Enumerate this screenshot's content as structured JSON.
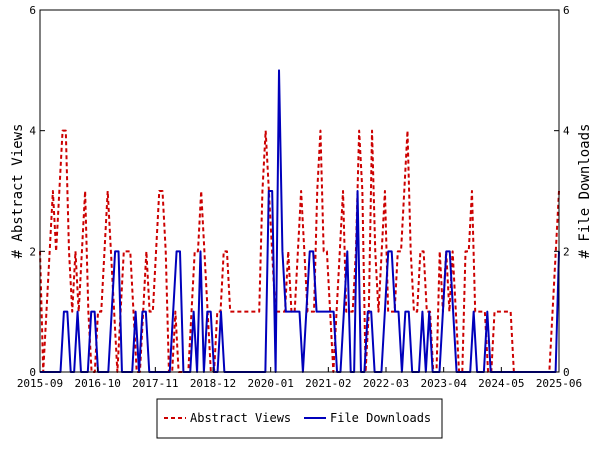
{
  "chart_data": {
    "type": "line",
    "ylabel_left": "# Abstract Views",
    "ylabel_right": "# File Downloads",
    "ylim": [
      0,
      6
    ],
    "y_ticks": [
      0,
      2,
      4,
      6
    ],
    "x_ticks": [
      "2015-09",
      "2016-10",
      "2017-11",
      "2018-12",
      "2020-01",
      "2021-02",
      "2022-03",
      "2023-04",
      "2024-05",
      "2025-06"
    ],
    "grid": false,
    "legend_placement": "bottom-center",
    "series": [
      {
        "name": "Abstract Views",
        "color": "#cc0000",
        "style": "dashed",
        "values": [
          2,
          0,
          1,
          2,
          3,
          2,
          3,
          4,
          4,
          2,
          1,
          2,
          1,
          2,
          3,
          1,
          0,
          0,
          1,
          1,
          2,
          3,
          2,
          1,
          0,
          1,
          2,
          2,
          2,
          1,
          0,
          0,
          1,
          2,
          1,
          1,
          2,
          3,
          3,
          2,
          0,
          0,
          1,
          0,
          0,
          0,
          0,
          1,
          2,
          2,
          3,
          2,
          1,
          0,
          0,
          1,
          1,
          2,
          2,
          1,
          1,
          1,
          1,
          1,
          1,
          1,
          1,
          1,
          1,
          3,
          4,
          3,
          2,
          1,
          1,
          1,
          1,
          2,
          1,
          1,
          2,
          3,
          2,
          1,
          1,
          1,
          3,
          4,
          2,
          2,
          1,
          0,
          1,
          2,
          3,
          1,
          1,
          1,
          2,
          4,
          3,
          0,
          1,
          4,
          2,
          1,
          2,
          3,
          1,
          1,
          1,
          2,
          2,
          3,
          4,
          2,
          1,
          1,
          2,
          2,
          1,
          1,
          0,
          0,
          2,
          1,
          2,
          1,
          2,
          1,
          0,
          0,
          2,
          2,
          3,
          1,
          1,
          1,
          1,
          0,
          0,
          1,
          1,
          1,
          1,
          1,
          1,
          0,
          0,
          0,
          0,
          0,
          0,
          0,
          0,
          0,
          0,
          0,
          0,
          1,
          2,
          3
        ]
      },
      {
        "name": "File Downloads",
        "color": "#0000bb",
        "style": "solid",
        "values": [
          0,
          0,
          0,
          0,
          0,
          0,
          0,
          1,
          1,
          0,
          0,
          1,
          0,
          0,
          0,
          1,
          1,
          0,
          0,
          0,
          0,
          1,
          2,
          2,
          0,
          0,
          0,
          0,
          1,
          0,
          1,
          1,
          0,
          0,
          0,
          0,
          0,
          0,
          0,
          1,
          2,
          2,
          0,
          0,
          0,
          1,
          0,
          2,
          0,
          1,
          1,
          0,
          0,
          1,
          0,
          0,
          0,
          0,
          0,
          0,
          0,
          0,
          0,
          0,
          0,
          0,
          0,
          3,
          3,
          0,
          5,
          2,
          1,
          1,
          1,
          1,
          1,
          0,
          1,
          2,
          2,
          1,
          1,
          1,
          1,
          1,
          1,
          0,
          0,
          1,
          2,
          0,
          0,
          3,
          0,
          0,
          1,
          1,
          0,
          0,
          0,
          1,
          2,
          2,
          1,
          1,
          0,
          1,
          1,
          0,
          0,
          0,
          1,
          0,
          1,
          0,
          0,
          0,
          1,
          2,
          2,
          1,
          0,
          0,
          0,
          0,
          0,
          1,
          0,
          0,
          0,
          1,
          0,
          0,
          0,
          0,
          0,
          0,
          0,
          0,
          0,
          0,
          0,
          0,
          0,
          0,
          0,
          0,
          0,
          0,
          0,
          0,
          2
        ]
      }
    ]
  }
}
